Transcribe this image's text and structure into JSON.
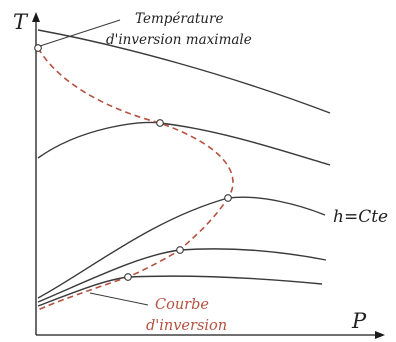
{
  "axes": {
    "y_label": "T",
    "x_label": "P"
  },
  "labels": {
    "max_inversion_line1": "Température",
    "max_inversion_line2": "d'inversion maximale",
    "isenthalp": "h=Cte",
    "inversion_line1": "Courbe",
    "inversion_line2": "d'inversion"
  },
  "colors": {
    "inversion_curve": "#b5523f",
    "curves": "#3a3a3a"
  }
}
